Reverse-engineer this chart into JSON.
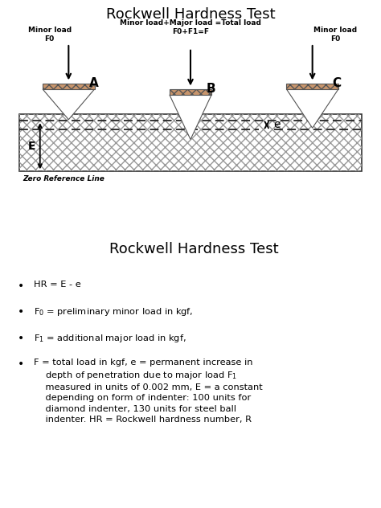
{
  "title": "Rockwell Hardness Test",
  "title2": "Rockwell Hardness Test",
  "bg_color": "#e8e8e8",
  "indenter_fill": "#c8956c",
  "indenter_edge": "#555555",
  "material_edge": "#333333",
  "arrow_color": "#111111",
  "dashed_color": "#222222",
  "label_A": "A",
  "label_B": "B",
  "label_C": "C",
  "label_E": "E",
  "label_e": "e",
  "minor_load_left": "Minor load\nF0",
  "minor_load_right": "Minor load\nF0",
  "center_load": "Minor load+Major load =Total load\nF0+F1=F",
  "zero_ref": "Zero Reference Line"
}
